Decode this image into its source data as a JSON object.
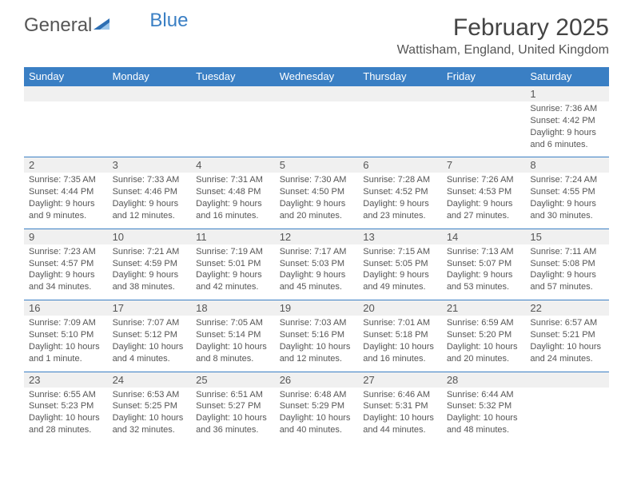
{
  "brand": {
    "name_part1": "General",
    "name_part2": "Blue"
  },
  "title": "February 2025",
  "location": "Wattisham, England, United Kingdom",
  "colors": {
    "header_bg": "#3a7fc4",
    "header_text": "#ffffff",
    "daynum_bg": "#f0f0f0",
    "cell_text": "#555555",
    "page_bg": "#ffffff"
  },
  "typography": {
    "title_fontsize": 30,
    "location_fontsize": 16,
    "dayheader_fontsize": 13,
    "cell_fontsize": 11
  },
  "day_headers": [
    "Sunday",
    "Monday",
    "Tuesday",
    "Wednesday",
    "Thursday",
    "Friday",
    "Saturday"
  ],
  "weeks": [
    {
      "days": [
        {
          "num": "",
          "sunrise": "",
          "sunset": "",
          "daylight1": "",
          "daylight2": ""
        },
        {
          "num": "",
          "sunrise": "",
          "sunset": "",
          "daylight1": "",
          "daylight2": ""
        },
        {
          "num": "",
          "sunrise": "",
          "sunset": "",
          "daylight1": "",
          "daylight2": ""
        },
        {
          "num": "",
          "sunrise": "",
          "sunset": "",
          "daylight1": "",
          "daylight2": ""
        },
        {
          "num": "",
          "sunrise": "",
          "sunset": "",
          "daylight1": "",
          "daylight2": ""
        },
        {
          "num": "",
          "sunrise": "",
          "sunset": "",
          "daylight1": "",
          "daylight2": ""
        },
        {
          "num": "1",
          "sunrise": "Sunrise: 7:36 AM",
          "sunset": "Sunset: 4:42 PM",
          "daylight1": "Daylight: 9 hours",
          "daylight2": "and 6 minutes."
        }
      ]
    },
    {
      "days": [
        {
          "num": "2",
          "sunrise": "Sunrise: 7:35 AM",
          "sunset": "Sunset: 4:44 PM",
          "daylight1": "Daylight: 9 hours",
          "daylight2": "and 9 minutes."
        },
        {
          "num": "3",
          "sunrise": "Sunrise: 7:33 AM",
          "sunset": "Sunset: 4:46 PM",
          "daylight1": "Daylight: 9 hours",
          "daylight2": "and 12 minutes."
        },
        {
          "num": "4",
          "sunrise": "Sunrise: 7:31 AM",
          "sunset": "Sunset: 4:48 PM",
          "daylight1": "Daylight: 9 hours",
          "daylight2": "and 16 minutes."
        },
        {
          "num": "5",
          "sunrise": "Sunrise: 7:30 AM",
          "sunset": "Sunset: 4:50 PM",
          "daylight1": "Daylight: 9 hours",
          "daylight2": "and 20 minutes."
        },
        {
          "num": "6",
          "sunrise": "Sunrise: 7:28 AM",
          "sunset": "Sunset: 4:52 PM",
          "daylight1": "Daylight: 9 hours",
          "daylight2": "and 23 minutes."
        },
        {
          "num": "7",
          "sunrise": "Sunrise: 7:26 AM",
          "sunset": "Sunset: 4:53 PM",
          "daylight1": "Daylight: 9 hours",
          "daylight2": "and 27 minutes."
        },
        {
          "num": "8",
          "sunrise": "Sunrise: 7:24 AM",
          "sunset": "Sunset: 4:55 PM",
          "daylight1": "Daylight: 9 hours",
          "daylight2": "and 30 minutes."
        }
      ]
    },
    {
      "days": [
        {
          "num": "9",
          "sunrise": "Sunrise: 7:23 AM",
          "sunset": "Sunset: 4:57 PM",
          "daylight1": "Daylight: 9 hours",
          "daylight2": "and 34 minutes."
        },
        {
          "num": "10",
          "sunrise": "Sunrise: 7:21 AM",
          "sunset": "Sunset: 4:59 PM",
          "daylight1": "Daylight: 9 hours",
          "daylight2": "and 38 minutes."
        },
        {
          "num": "11",
          "sunrise": "Sunrise: 7:19 AM",
          "sunset": "Sunset: 5:01 PM",
          "daylight1": "Daylight: 9 hours",
          "daylight2": "and 42 minutes."
        },
        {
          "num": "12",
          "sunrise": "Sunrise: 7:17 AM",
          "sunset": "Sunset: 5:03 PM",
          "daylight1": "Daylight: 9 hours",
          "daylight2": "and 45 minutes."
        },
        {
          "num": "13",
          "sunrise": "Sunrise: 7:15 AM",
          "sunset": "Sunset: 5:05 PM",
          "daylight1": "Daylight: 9 hours",
          "daylight2": "and 49 minutes."
        },
        {
          "num": "14",
          "sunrise": "Sunrise: 7:13 AM",
          "sunset": "Sunset: 5:07 PM",
          "daylight1": "Daylight: 9 hours",
          "daylight2": "and 53 minutes."
        },
        {
          "num": "15",
          "sunrise": "Sunrise: 7:11 AM",
          "sunset": "Sunset: 5:08 PM",
          "daylight1": "Daylight: 9 hours",
          "daylight2": "and 57 minutes."
        }
      ]
    },
    {
      "days": [
        {
          "num": "16",
          "sunrise": "Sunrise: 7:09 AM",
          "sunset": "Sunset: 5:10 PM",
          "daylight1": "Daylight: 10 hours",
          "daylight2": "and 1 minute."
        },
        {
          "num": "17",
          "sunrise": "Sunrise: 7:07 AM",
          "sunset": "Sunset: 5:12 PM",
          "daylight1": "Daylight: 10 hours",
          "daylight2": "and 4 minutes."
        },
        {
          "num": "18",
          "sunrise": "Sunrise: 7:05 AM",
          "sunset": "Sunset: 5:14 PM",
          "daylight1": "Daylight: 10 hours",
          "daylight2": "and 8 minutes."
        },
        {
          "num": "19",
          "sunrise": "Sunrise: 7:03 AM",
          "sunset": "Sunset: 5:16 PM",
          "daylight1": "Daylight: 10 hours",
          "daylight2": "and 12 minutes."
        },
        {
          "num": "20",
          "sunrise": "Sunrise: 7:01 AM",
          "sunset": "Sunset: 5:18 PM",
          "daylight1": "Daylight: 10 hours",
          "daylight2": "and 16 minutes."
        },
        {
          "num": "21",
          "sunrise": "Sunrise: 6:59 AM",
          "sunset": "Sunset: 5:20 PM",
          "daylight1": "Daylight: 10 hours",
          "daylight2": "and 20 minutes."
        },
        {
          "num": "22",
          "sunrise": "Sunrise: 6:57 AM",
          "sunset": "Sunset: 5:21 PM",
          "daylight1": "Daylight: 10 hours",
          "daylight2": "and 24 minutes."
        }
      ]
    },
    {
      "days": [
        {
          "num": "23",
          "sunrise": "Sunrise: 6:55 AM",
          "sunset": "Sunset: 5:23 PM",
          "daylight1": "Daylight: 10 hours",
          "daylight2": "and 28 minutes."
        },
        {
          "num": "24",
          "sunrise": "Sunrise: 6:53 AM",
          "sunset": "Sunset: 5:25 PM",
          "daylight1": "Daylight: 10 hours",
          "daylight2": "and 32 minutes."
        },
        {
          "num": "25",
          "sunrise": "Sunrise: 6:51 AM",
          "sunset": "Sunset: 5:27 PM",
          "daylight1": "Daylight: 10 hours",
          "daylight2": "and 36 minutes."
        },
        {
          "num": "26",
          "sunrise": "Sunrise: 6:48 AM",
          "sunset": "Sunset: 5:29 PM",
          "daylight1": "Daylight: 10 hours",
          "daylight2": "and 40 minutes."
        },
        {
          "num": "27",
          "sunrise": "Sunrise: 6:46 AM",
          "sunset": "Sunset: 5:31 PM",
          "daylight1": "Daylight: 10 hours",
          "daylight2": "and 44 minutes."
        },
        {
          "num": "28",
          "sunrise": "Sunrise: 6:44 AM",
          "sunset": "Sunset: 5:32 PM",
          "daylight1": "Daylight: 10 hours",
          "daylight2": "and 48 minutes."
        },
        {
          "num": "",
          "sunrise": "",
          "sunset": "",
          "daylight1": "",
          "daylight2": ""
        }
      ]
    }
  ]
}
